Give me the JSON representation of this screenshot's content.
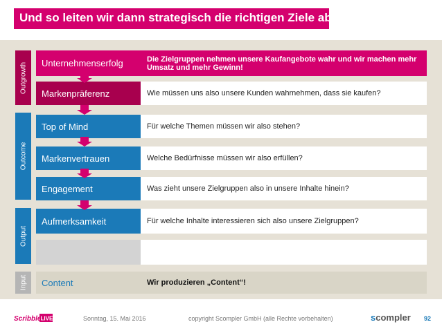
{
  "slide": {
    "title": "Und so leiten wir dann strategisch die richtigen Ziele ab!",
    "groups": [
      {
        "label": "Outgrowth",
        "color": "#a8004e"
      },
      {
        "label": "Outcome",
        "color": "#1b7ab8"
      },
      {
        "label": "Output",
        "color": "#1b7ab8"
      },
      {
        "label": "Input",
        "color": "#b5b5b5"
      }
    ],
    "rows": [
      {
        "label": "Unternehmenserfolg",
        "question": "Die Zielgruppen nehmen unsere Kaufangebote wahr und wir machen mehr Umsatz und mehr Gewinn!"
      },
      {
        "label": "Markenpräferenz",
        "question": "Wie müssen uns also unsere Kunden wahrnehmen, dass sie kaufen?"
      },
      {
        "label": "Top of Mind",
        "question": "Für welche Themen müssen wir also stehen?"
      },
      {
        "label": "Markenvertrauen",
        "question": "Welche Bedürfnisse müssen wir also erfüllen?"
      },
      {
        "label": "Engagement",
        "question": "Was zieht unsere Zielgruppen also in unsere Inhalte hinein?"
      },
      {
        "label": "Aufmerksamkeit",
        "question": "Für welche Inhalte interessieren sich also unsere Zielgruppen?"
      },
      {
        "label": "",
        "question": ""
      },
      {
        "label": "Content",
        "question": "Wir produzieren „Content“!"
      }
    ]
  },
  "footer": {
    "brand_left": "Scribble LIVE",
    "date": "Sonntag, 15. Mai 2016",
    "copyright": "copyright Scompler GmbH (alle Rechte vorbehalten)",
    "brand_right": "scompler",
    "page": "92"
  },
  "colors": {
    "magenta": "#d4006e",
    "dark_magenta": "#a8004e",
    "blue": "#1b7ab8",
    "gray": "#b5b5b5",
    "panel": "#e6e1d6"
  }
}
